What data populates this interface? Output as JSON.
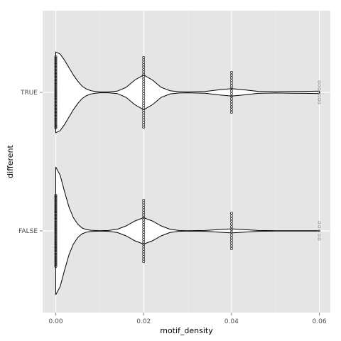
{
  "chart_data": {
    "type": "violin",
    "orientation": "horizontal",
    "xlabel": "motif_density",
    "ylabel": "different",
    "xlim": [
      -0.003,
      0.0625
    ],
    "x_ticks": [
      {
        "value": 0.0,
        "label": "0.00"
      },
      {
        "value": 0.02,
        "label": "0.02"
      },
      {
        "value": 0.04,
        "label": "0.04"
      },
      {
        "value": 0.06,
        "label": "0.06"
      }
    ],
    "categories": [
      "FALSE",
      "TRUE"
    ],
    "grid": true,
    "panel_background": "#e5e5e5",
    "grid_color": "#ffffff",
    "series": [
      {
        "category": "TRUE",
        "violin_half_width": [
          [
            0.0,
            0.98
          ],
          [
            0.001,
            0.93
          ],
          [
            0.002,
            0.78
          ],
          [
            0.003,
            0.6
          ],
          [
            0.004,
            0.42
          ],
          [
            0.005,
            0.27
          ],
          [
            0.006,
            0.15
          ],
          [
            0.007,
            0.08
          ],
          [
            0.008,
            0.04
          ],
          [
            0.009,
            0.02
          ],
          [
            0.01,
            0.01
          ],
          [
            0.012,
            0.01
          ],
          [
            0.014,
            0.03
          ],
          [
            0.016,
            0.12
          ],
          [
            0.018,
            0.3
          ],
          [
            0.02,
            0.42
          ],
          [
            0.022,
            0.3
          ],
          [
            0.024,
            0.12
          ],
          [
            0.026,
            0.04
          ],
          [
            0.028,
            0.015
          ],
          [
            0.03,
            0.01
          ],
          [
            0.034,
            0.02
          ],
          [
            0.037,
            0.06
          ],
          [
            0.04,
            0.09
          ],
          [
            0.043,
            0.06
          ],
          [
            0.046,
            0.025
          ],
          [
            0.05,
            0.015
          ],
          [
            0.054,
            0.02
          ],
          [
            0.057,
            0.025
          ],
          [
            0.06,
            0.03
          ]
        ],
        "points": [
          {
            "x": 0.0,
            "count": 50
          },
          {
            "x": 0.02,
            "count": 30
          },
          {
            "x": 0.04,
            "count": 16
          },
          {
            "x": 0.06,
            "count": 7
          }
        ]
      },
      {
        "category": "FALSE",
        "violin_half_width": [
          [
            0.0,
            1.55
          ],
          [
            0.001,
            1.35
          ],
          [
            0.002,
            0.95
          ],
          [
            0.003,
            0.58
          ],
          [
            0.004,
            0.32
          ],
          [
            0.005,
            0.16
          ],
          [
            0.006,
            0.07
          ],
          [
            0.007,
            0.03
          ],
          [
            0.008,
            0.015
          ],
          [
            0.01,
            0.005
          ],
          [
            0.012,
            0.01
          ],
          [
            0.014,
            0.04
          ],
          [
            0.016,
            0.12
          ],
          [
            0.018,
            0.24
          ],
          [
            0.02,
            0.32
          ],
          [
            0.022,
            0.24
          ],
          [
            0.024,
            0.12
          ],
          [
            0.026,
            0.04
          ],
          [
            0.028,
            0.01
          ],
          [
            0.03,
            0.005
          ],
          [
            0.034,
            0.01
          ],
          [
            0.037,
            0.03
          ],
          [
            0.04,
            0.05
          ],
          [
            0.043,
            0.03
          ],
          [
            0.046,
            0.01
          ],
          [
            0.05,
            0.005
          ],
          [
            0.054,
            0.005
          ],
          [
            0.057,
            0.005
          ],
          [
            0.06,
            0.005
          ]
        ],
        "points": [
          {
            "x": 0.0,
            "count": 52
          },
          {
            "x": 0.02,
            "count": 26
          },
          {
            "x": 0.04,
            "count": 14
          },
          {
            "x": 0.06,
            "count": 5
          }
        ]
      }
    ]
  }
}
